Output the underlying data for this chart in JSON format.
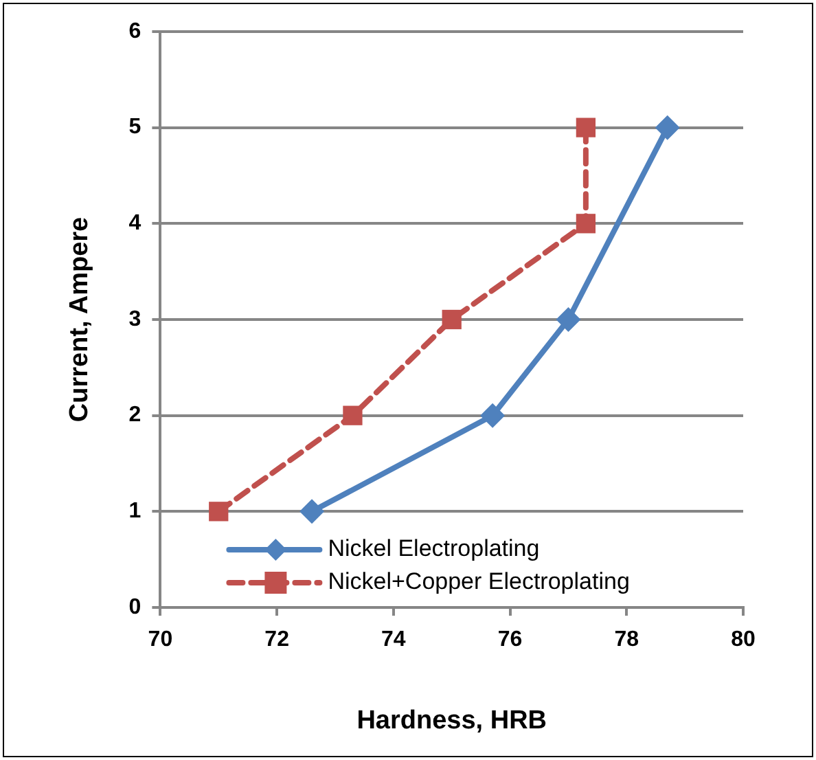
{
  "chart_data": {
    "type": "line",
    "xlabel": "Hardness, HRB",
    "ylabel": "Current, Ampere",
    "xlim": [
      70,
      80
    ],
    "xticks": [
      70,
      72,
      74,
      76,
      78,
      80
    ],
    "ylim": [
      0,
      6
    ],
    "yticks": [
      0,
      1,
      2,
      3,
      4,
      5,
      6
    ],
    "grid": "y",
    "legend": "bottom left",
    "series": [
      {
        "name": "Nickel Electroplating",
        "color": "#4f81bd",
        "marker": "diamond",
        "line_style": "solid",
        "x": [
          72.6,
          75.7,
          77.0,
          78.7
        ],
        "values": [
          1,
          2,
          3,
          5
        ]
      },
      {
        "name": "Nickel+Copper Electroplating",
        "color": "#c0504d",
        "marker": "square",
        "line_style": "dashed",
        "x": [
          71.0,
          73.3,
          75.0,
          77.3,
          77.3
        ],
        "values": [
          1,
          2,
          3,
          4,
          5
        ]
      }
    ]
  }
}
